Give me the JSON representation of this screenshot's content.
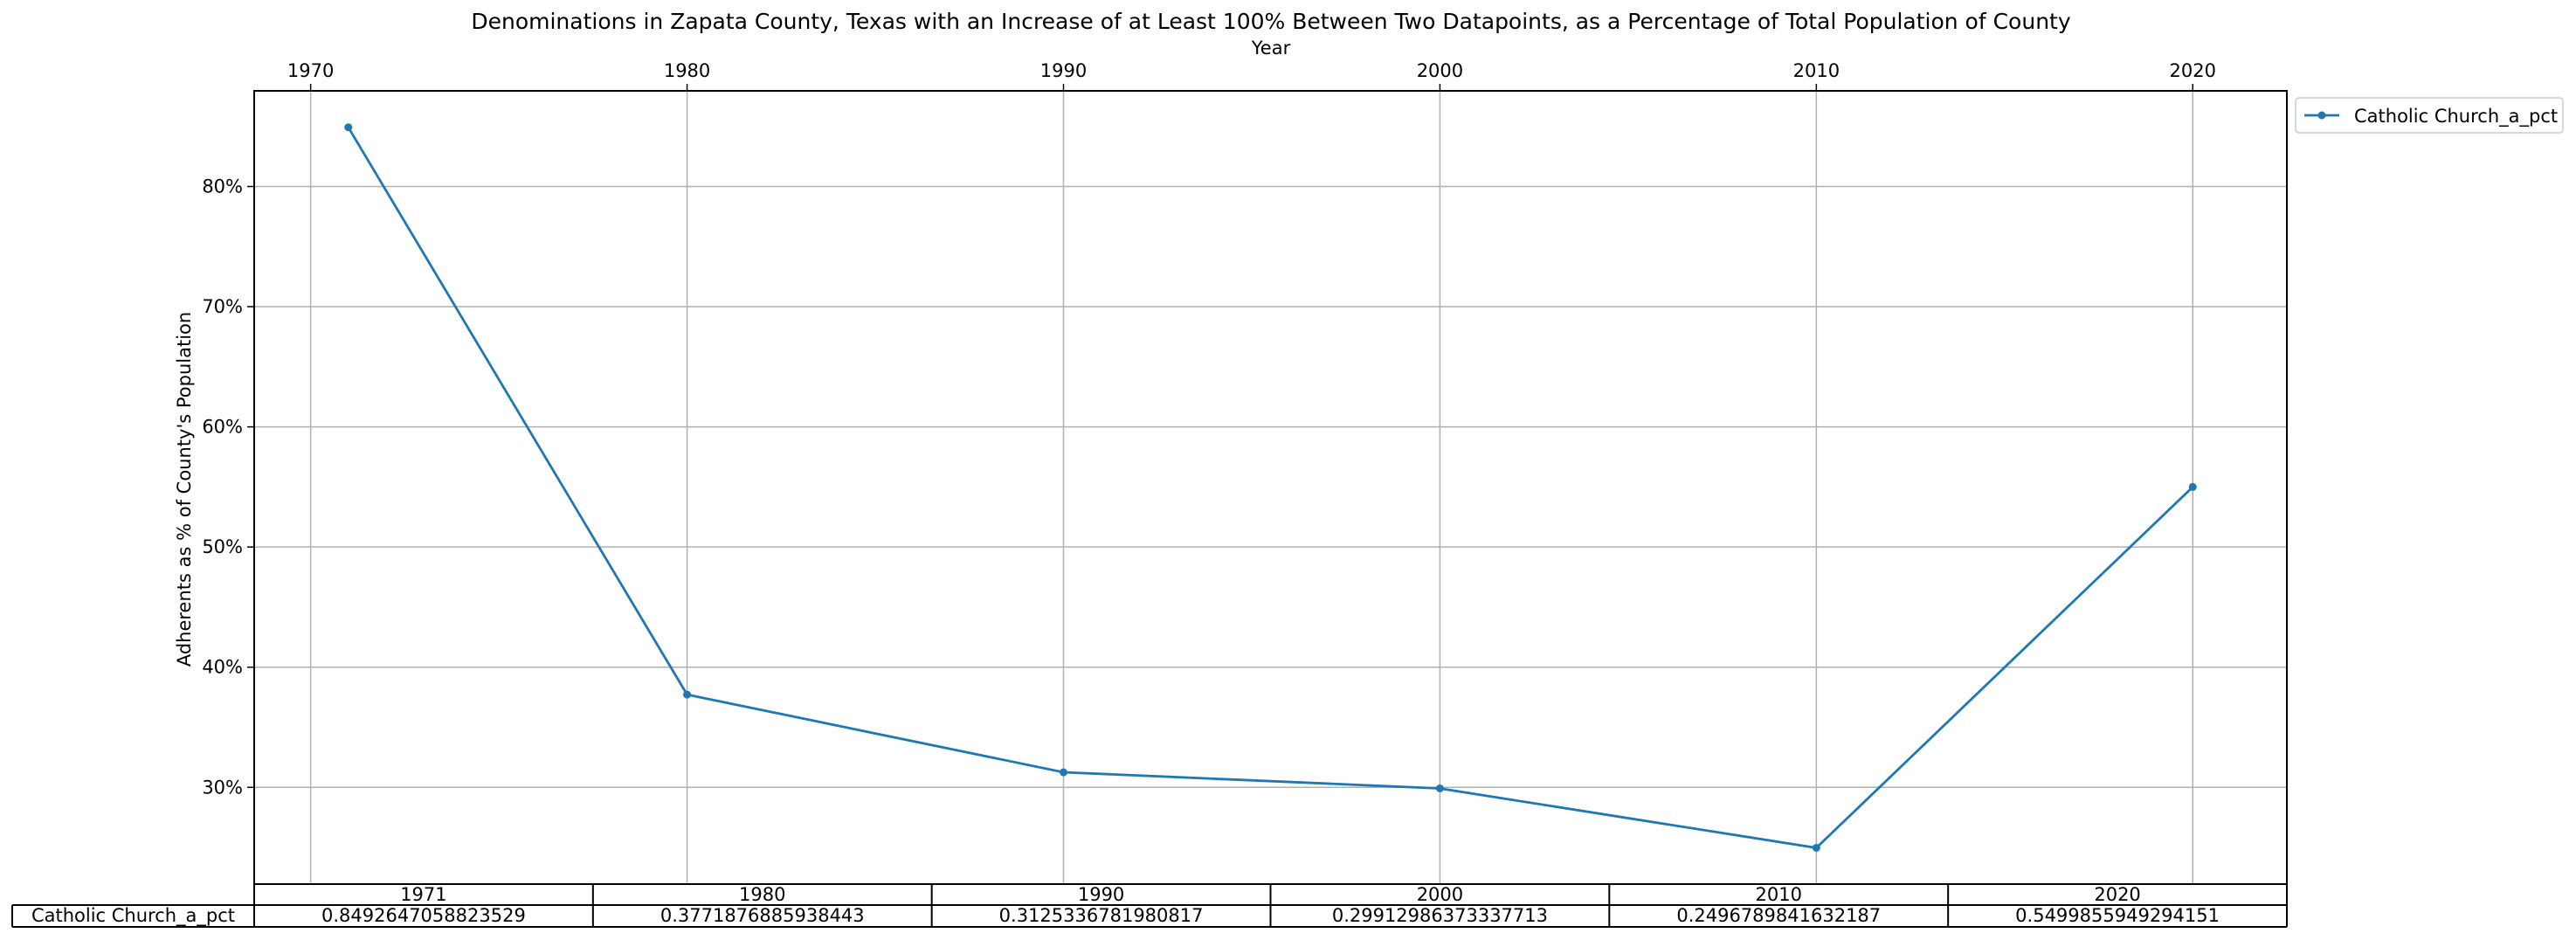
{
  "chart_data": {
    "type": "line",
    "title": "Denominations in Zapata County, Texas with an Increase of at Least 100% Between Two Datapoints, as a Percentage of Total Population of County",
    "xlabel": "Year",
    "ylabel": "Adherents as % of County's Population",
    "x_ticks": [
      "1970",
      "1980",
      "1990",
      "2000",
      "2010",
      "2020"
    ],
    "x_tick_values": [
      1970,
      1980,
      1990,
      2000,
      2010,
      2020
    ],
    "xlim": [
      1968.5,
      2022.5
    ],
    "y_ticks": [
      "30%",
      "40%",
      "50%",
      "60%",
      "70%",
      "80%"
    ],
    "y_tick_values": [
      0.3,
      0.4,
      0.5,
      0.6,
      0.7,
      0.8
    ],
    "ylim": [
      0.2195,
      0.8796
    ],
    "grid": true,
    "legend_position": "outside-top-right",
    "line_color": "#1f77b4",
    "x": [
      1971,
      1980,
      1990,
      2000,
      2010,
      2020
    ],
    "series": [
      {
        "name": "Catholic Church_a_pct",
        "values": [
          0.8492647058823529,
          0.3771876885938443,
          0.3125336781980817,
          0.29912986373337713,
          0.2496789841632187,
          0.5499855949294151
        ]
      }
    ],
    "table": {
      "columns": [
        "1971",
        "1980",
        "1990",
        "2000",
        "2010",
        "2020"
      ],
      "rows": [
        {
          "label": "Catholic Church_a_pct",
          "cells": [
            "0.8492647058823529",
            "0.3771876885938443",
            "0.3125336781980817",
            "0.29912986373337713",
            "0.2496789841632187",
            "0.5499855949294151"
          ]
        }
      ]
    }
  }
}
